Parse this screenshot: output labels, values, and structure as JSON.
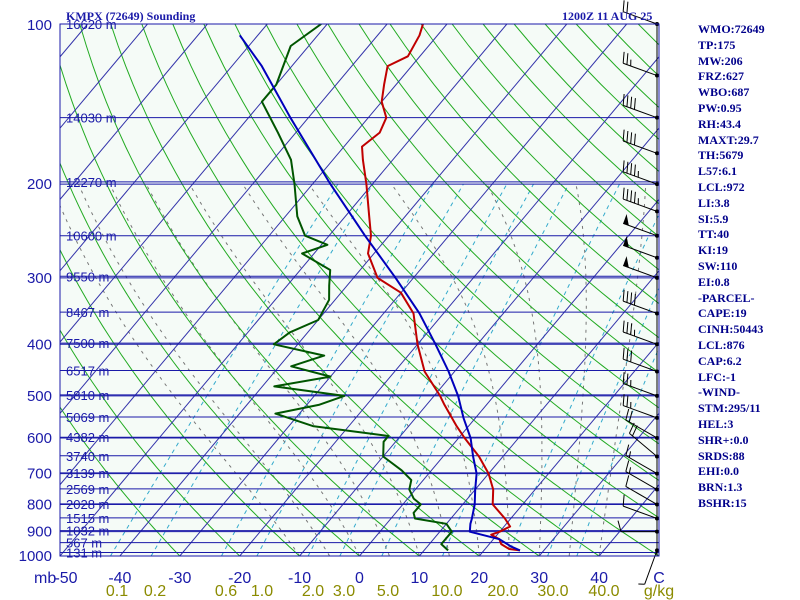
{
  "header": {
    "station": "KMPX (72649) Sounding",
    "time": "1200Z 11 AUG 25"
  },
  "indices": [
    "WMO:72649",
    "TP:175",
    "MW:206",
    "FRZ:627",
    "WBO:687",
    "PW:0.95",
    "RH:43.4",
    "MAXT:29.7",
    "TH:5679",
    "L57:6.1",
    "LCL:972",
    "LI:3.8",
    "SI:5.9",
    "TT:40",
    "KI:19",
    "SW:110",
    "EI:0.8",
    "-PARCEL-",
    "CAPE:19",
    "CINH:50443",
    "LCL:876",
    "CAP:6.2",
    "LFC:-1",
    "-WIND-",
    "STM:295/11",
    "HEL:3",
    "SHR+:0.0",
    "SRDS:88",
    "EHI:0.0",
    "BRN:1.3",
    "BSHR:15"
  ],
  "colors": {
    "background": "#f5fbf7",
    "isobar": "#1a1aa8",
    "isotherm": "#3333aa",
    "dry_adiabat": "#22aa22",
    "moist_adiabat": "#777777",
    "mixing_ratio": "#33aacc",
    "temperature": "#c00000",
    "dewpoint": "#005500",
    "parcel": "#0000bb",
    "wind_barb": "#000000",
    "axis_text": "#1a1aa8",
    "mixing_label": "#8b8b00"
  },
  "chart_data": {
    "type": "line",
    "title": "KMPX (72649) Sounding",
    "xlabel": "C",
    "ylabel": "mb",
    "xlim": [
      -50,
      50
    ],
    "ylim": [
      1000,
      100
    ],
    "y_scale": "log",
    "grid": true,
    "isobars": [
      100,
      200,
      300,
      400,
      500,
      600,
      700,
      800,
      900,
      1000
    ],
    "pressure_tick_labels": [
      "100",
      "200",
      "300",
      "400",
      "500",
      "600",
      "700",
      "800",
      "900",
      "1000"
    ],
    "temperature_ticks": [
      -50,
      -40,
      -30,
      -20,
      -10,
      0,
      10,
      20,
      30,
      40
    ],
    "temperature_tick_labels": [
      "-50",
      "-40",
      "-30",
      "-20",
      "-10",
      "0",
      "10",
      "20",
      "30",
      "40"
    ],
    "axis_prefix": "mb",
    "axis_unit": "C",
    "mixing_ratio_labels": [
      "0.1",
      "0.2",
      "0.6",
      "1.0",
      "2.0",
      "3.0",
      "5.0",
      "10.0",
      "20.0",
      "30.0",
      "40.0",
      "g/kg"
    ],
    "mixing_ratio_values": [
      0.1,
      0.2,
      0.6,
      1.0,
      2.0,
      3.0,
      5.0,
      10.0,
      20.0,
      30.0,
      40.0
    ],
    "height_labels": [
      {
        "p": 985,
        "label": "131 m"
      },
      {
        "p": 944,
        "label": "567 m"
      },
      {
        "p": 896,
        "label": "1032 m"
      },
      {
        "p": 848,
        "label": "1515 m"
      },
      {
        "p": 798,
        "label": "2028 m"
      },
      {
        "p": 748,
        "label": "2569 m"
      },
      {
        "p": 698,
        "label": "3139 m"
      },
      {
        "p": 648,
        "label": "3740 m"
      },
      {
        "p": 598,
        "label": "4382 m"
      },
      {
        "p": 548,
        "label": "5069 m"
      },
      {
        "p": 498,
        "label": "5810 m"
      },
      {
        "p": 448,
        "label": "6517 m"
      },
      {
        "p": 398,
        "label": "7500 m"
      },
      {
        "p": 348,
        "label": "8467 m"
      },
      {
        "p": 298,
        "label": "9550 m"
      },
      {
        "p": 250,
        "label": "10600 m"
      },
      {
        "p": 198,
        "label": "12270 m"
      },
      {
        "p": 150,
        "label": "14030 m"
      },
      {
        "p": 100,
        "label": "16620 m"
      }
    ],
    "series": [
      {
        "key": "temperature",
        "points": [
          [
            976,
            26
          ],
          [
            970,
            24
          ],
          [
            950,
            22
          ],
          [
            930,
            21
          ],
          [
            912,
            19
          ],
          [
            900,
            20
          ],
          [
            880,
            21
          ],
          [
            850,
            19
          ],
          [
            800,
            15
          ],
          [
            750,
            13
          ],
          [
            700,
            10
          ],
          [
            650,
            6
          ],
          [
            600,
            1
          ],
          [
            570,
            -2
          ],
          [
            520,
            -7
          ],
          [
            500,
            -9
          ],
          [
            450,
            -15
          ],
          [
            400,
            -20
          ],
          [
            350,
            -25
          ],
          [
            320,
            -30
          ],
          [
            300,
            -36
          ],
          [
            270,
            -41
          ],
          [
            250,
            -43
          ],
          [
            230,
            -46
          ],
          [
            200,
            -51
          ],
          [
            180,
            -55
          ],
          [
            170,
            -57
          ],
          [
            160,
            -56
          ],
          [
            150,
            -57
          ],
          [
            140,
            -60
          ],
          [
            130,
            -62
          ],
          [
            120,
            -64
          ],
          [
            115,
            -62
          ],
          [
            105,
            -63
          ],
          [
            100,
            -64
          ]
        ]
      },
      {
        "key": "dewpoint",
        "points": [
          [
            976,
            14
          ],
          [
            950,
            12
          ],
          [
            900,
            12
          ],
          [
            870,
            10
          ],
          [
            850,
            4
          ],
          [
            830,
            3
          ],
          [
            800,
            3
          ],
          [
            780,
            1
          ],
          [
            750,
            -1
          ],
          [
            720,
            -2
          ],
          [
            690,
            -5
          ],
          [
            650,
            -10
          ],
          [
            610,
            -12
          ],
          [
            595,
            -12
          ],
          [
            570,
            -26
          ],
          [
            540,
            -34
          ],
          [
            520,
            -28
          ],
          [
            500,
            -25
          ],
          [
            480,
            -38
          ],
          [
            460,
            -30
          ],
          [
            440,
            -38
          ],
          [
            420,
            -34
          ],
          [
            400,
            -44
          ],
          [
            380,
            -43
          ],
          [
            360,
            -40
          ],
          [
            330,
            -41
          ],
          [
            310,
            -43
          ],
          [
            290,
            -45
          ],
          [
            270,
            -52
          ],
          [
            260,
            -49
          ],
          [
            250,
            -54
          ],
          [
            230,
            -58
          ],
          [
            200,
            -63
          ],
          [
            180,
            -67
          ],
          [
            160,
            -73
          ],
          [
            140,
            -80
          ],
          [
            130,
            -80
          ],
          [
            110,
            -83
          ],
          [
            100,
            -81
          ]
        ]
      },
      {
        "key": "parcel",
        "points": [
          [
            976,
            26
          ],
          [
            960,
            24
          ],
          [
            930,
            21
          ],
          [
            900,
            15
          ],
          [
            870,
            14
          ],
          [
            850,
            13.5
          ],
          [
            800,
            12
          ],
          [
            750,
            10
          ],
          [
            700,
            8
          ],
          [
            650,
            5
          ],
          [
            600,
            2
          ],
          [
            550,
            -2
          ],
          [
            500,
            -6
          ],
          [
            450,
            -11
          ],
          [
            400,
            -17
          ],
          [
            350,
            -24
          ],
          [
            300,
            -33
          ],
          [
            250,
            -44
          ],
          [
            200,
            -57
          ],
          [
            150,
            -73
          ],
          [
            120,
            -85
          ],
          [
            105,
            -93
          ]
        ]
      }
    ],
    "wind_levels": [
      {
        "p": 976,
        "dir": 200,
        "spd": 5
      },
      {
        "p": 900,
        "dir": 270,
        "spd": 10
      },
      {
        "p": 850,
        "dir": 290,
        "spd": 10
      },
      {
        "p": 800,
        "dir": 300,
        "spd": 10
      },
      {
        "p": 750,
        "dir": 300,
        "spd": 15
      },
      {
        "p": 700,
        "dir": 300,
        "spd": 15
      },
      {
        "p": 650,
        "dir": 310,
        "spd": 20
      },
      {
        "p": 600,
        "dir": 300,
        "spd": 20
      },
      {
        "p": 550,
        "dir": 290,
        "spd": 25
      },
      {
        "p": 500,
        "dir": 290,
        "spd": 25
      },
      {
        "p": 450,
        "dir": 290,
        "spd": 30
      },
      {
        "p": 400,
        "dir": 290,
        "spd": 35
      },
      {
        "p": 350,
        "dir": 290,
        "spd": 40
      },
      {
        "p": 300,
        "dir": 290,
        "spd": 50
      },
      {
        "p": 275,
        "dir": 290,
        "spd": 50
      },
      {
        "p": 250,
        "dir": 290,
        "spd": 50
      },
      {
        "p": 225,
        "dir": 290,
        "spd": 45
      },
      {
        "p": 200,
        "dir": 290,
        "spd": 45
      },
      {
        "p": 175,
        "dir": 290,
        "spd": 40
      },
      {
        "p": 150,
        "dir": 290,
        "spd": 40
      },
      {
        "p": 125,
        "dir": 290,
        "spd": 25
      },
      {
        "p": 100,
        "dir": 290,
        "spd": 20
      }
    ]
  }
}
